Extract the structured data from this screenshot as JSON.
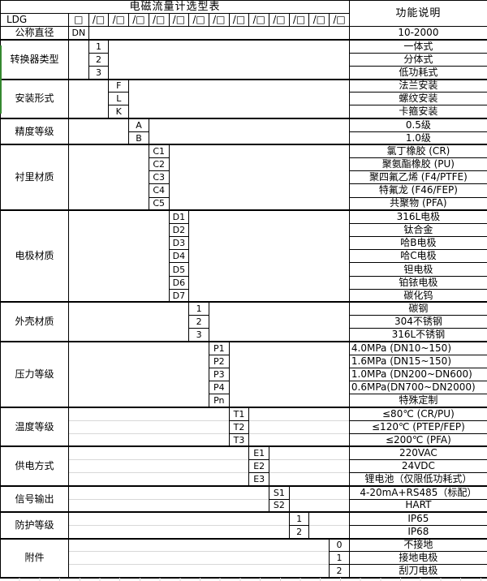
{
  "title": "电磁流量计选型表",
  "right_header": "功能说明",
  "model_prefix": "LDG",
  "code_box": "□",
  "code_box_slash": "/□",
  "colors": {
    "border": "#000000",
    "faint_grid": "#d8d8d8",
    "marker_green": "#35882f",
    "background": "#ffffff",
    "text": "#000000"
  },
  "layout_columns": 14,
  "groups": [
    {
      "label": "公称直径",
      "col": 1,
      "faint": false,
      "options": [
        {
          "code": "DN",
          "desc": "10-2000"
        }
      ]
    },
    {
      "label": "转换器类型",
      "col": 2,
      "faint": false,
      "options": [
        {
          "code": "1",
          "desc": "一体式"
        },
        {
          "code": "2",
          "desc": "分体式"
        },
        {
          "code": "3",
          "desc": "低功耗式"
        }
      ]
    },
    {
      "label": "安装形式",
      "col": 3,
      "faint": false,
      "options": [
        {
          "code": "F",
          "desc": "法兰安装"
        },
        {
          "code": "L",
          "desc": "螺纹安装"
        },
        {
          "code": "K",
          "desc": "卡箍安装"
        }
      ]
    },
    {
      "label": "精度等级",
      "col": 4,
      "faint": false,
      "options": [
        {
          "code": "A",
          "desc": "0.5级"
        },
        {
          "code": "B",
          "desc": "1.0级"
        }
      ]
    },
    {
      "label": "衬里材质",
      "col": 5,
      "faint": false,
      "options": [
        {
          "code": "C1",
          "desc": "氯丁橡胶 (CR)"
        },
        {
          "code": "C2",
          "desc": "聚氨酯橡胶 (PU)"
        },
        {
          "code": "C3",
          "desc": "聚四氟乙烯 (F4/PTFE)"
        },
        {
          "code": "C4",
          "desc": "特氟龙 (F46/FEP)"
        },
        {
          "code": "C5",
          "desc": "共聚物 (PFA)"
        }
      ]
    },
    {
      "label": "电极材质",
      "col": 6,
      "faint": false,
      "options": [
        {
          "code": "D1",
          "desc": "316L电极"
        },
        {
          "code": "D2",
          "desc": "钛合金"
        },
        {
          "code": "D3",
          "desc": "哈B电极"
        },
        {
          "code": "D4",
          "desc": "哈C电极"
        },
        {
          "code": "D5",
          "desc": "钽电极"
        },
        {
          "code": "D6",
          "desc": "铂铱电极"
        },
        {
          "code": "D7",
          "desc": "碳化钨"
        }
      ]
    },
    {
      "label": "外壳材质",
      "col": 7,
      "faint": false,
      "options": [
        {
          "code": "1",
          "desc": "碳钢"
        },
        {
          "code": "2",
          "desc": "304不锈钢"
        },
        {
          "code": "3",
          "desc": "316L不锈钢"
        }
      ]
    },
    {
      "label": "压力等级",
      "col": 8,
      "faint": false,
      "options": [
        {
          "code": "P1",
          "desc": "4.0MPa (DN10~150)",
          "align": "left"
        },
        {
          "code": "P2",
          "desc": "1.6MPa (DN15~150)",
          "align": "left"
        },
        {
          "code": "P3",
          "desc": "1.0MPa (DN200~DN600)",
          "align": "left"
        },
        {
          "code": "P4",
          "desc": "0.6MPa(DN700~DN2000)",
          "align": "left"
        },
        {
          "code": "Pn",
          "desc": "特殊定制"
        }
      ]
    },
    {
      "label": "温度等级",
      "col": 9,
      "faint": true,
      "options": [
        {
          "code": "T1",
          "desc": "≤80℃ (CR/PU)"
        },
        {
          "code": "T2",
          "desc": "≤120℃ (PTEP/FEP)"
        },
        {
          "code": "T3",
          "desc": "≤200℃ (PFA)"
        }
      ]
    },
    {
      "label": "供电方式",
      "col": 10,
      "faint": true,
      "options": [
        {
          "code": "E1",
          "desc": "220VAC"
        },
        {
          "code": "E2",
          "desc": "24VDC"
        },
        {
          "code": "E3",
          "desc": "锂电池（仅限低功耗式）"
        }
      ]
    },
    {
      "label": "信号输出",
      "col": 11,
      "faint": true,
      "options": [
        {
          "code": "S1",
          "desc": "4-20mA+RS485（标配）"
        },
        {
          "code": "S2",
          "desc": "HART"
        }
      ]
    },
    {
      "label": "防护等级",
      "col": 12,
      "faint": true,
      "options": [
        {
          "code": "1",
          "desc": "IP65"
        },
        {
          "code": "2",
          "desc": "IP68"
        }
      ]
    },
    {
      "label": "附件",
      "col": 14,
      "faint": true,
      "options": [
        {
          "code": "0",
          "desc": "不接地"
        },
        {
          "code": "1",
          "desc": "接地电极"
        },
        {
          "code": "2",
          "desc": "刮刀电极"
        }
      ]
    }
  ]
}
